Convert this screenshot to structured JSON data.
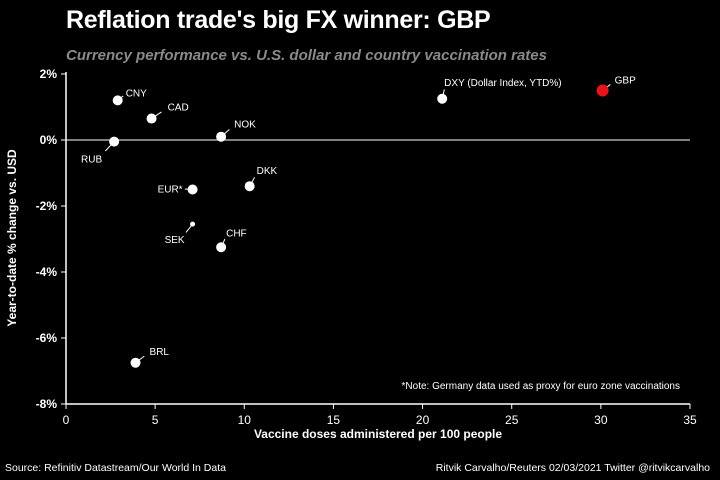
{
  "header": {
    "title": "Reflation trade's big FX winner: GBP",
    "subtitle": "Currency performance vs. U.S. dollar and country vaccination rates"
  },
  "footer": {
    "source": "Source: Refinitiv Datastream/Our World In Data",
    "credit": "Ritvik Carvalho/Reuters 02/03/2021 Twitter @ritvikcarvalho"
  },
  "colors": {
    "background": "#000000",
    "point": "#ffffff",
    "highlight": "#e8131b"
  },
  "chart_data": {
    "type": "scatter",
    "xlabel": "Vaccine doses administered per 100 people",
    "ylabel": "Year-to-date % change vs. USD",
    "xlim": [
      0,
      35
    ],
    "ylim": [
      -8,
      2
    ],
    "x_ticks": [
      0,
      5,
      10,
      15,
      20,
      25,
      30,
      35
    ],
    "x_tick_labels": [
      "0",
      "5",
      "10",
      "15",
      "20",
      "25",
      "30",
      "35"
    ],
    "y_ticks": [
      2,
      0,
      -2,
      -4,
      -6,
      -8
    ],
    "y_tick_labels": [
      "2%",
      "0%",
      "-2%",
      "-4%",
      "-6%",
      "-8%"
    ],
    "grid": false,
    "points": [
      {
        "label": "CNY",
        "x": 2.9,
        "y": 1.2
      },
      {
        "label": "CAD",
        "x": 4.8,
        "y": 0.65
      },
      {
        "label": "RUB",
        "x": 2.7,
        "y": -0.05
      },
      {
        "label": "NOK",
        "x": 8.7,
        "y": 0.1
      },
      {
        "label": "EUR*",
        "x": 7.1,
        "y": -1.5
      },
      {
        "label": "DKK",
        "x": 10.3,
        "y": -1.4
      },
      {
        "label": "SEK",
        "x": 7.1,
        "y": -2.55
      },
      {
        "label": "CHF",
        "x": 8.7,
        "y": -3.25
      },
      {
        "label": "BRL",
        "x": 3.9,
        "y": -6.75
      },
      {
        "label": "DXY (Dollar Index, YTD%)",
        "x": 21.1,
        "y": 1.25
      },
      {
        "label": "GBP",
        "x": 30.1,
        "y": 1.5,
        "highlight": true
      }
    ],
    "annotation": "*Note: Germany data used as proxy for euro zone vaccinations"
  }
}
